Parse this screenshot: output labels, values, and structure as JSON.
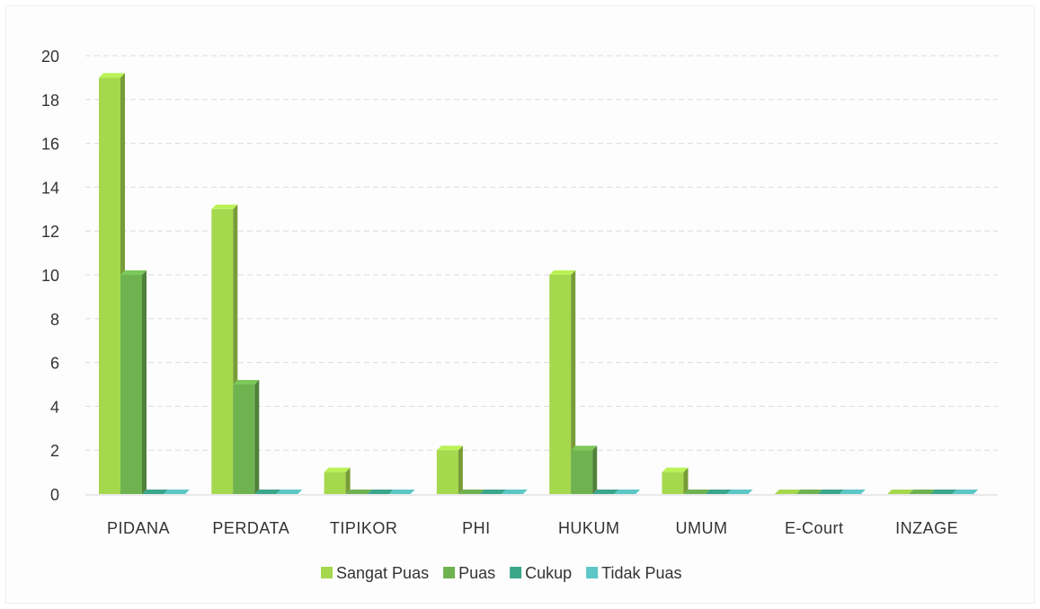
{
  "chart_data": {
    "type": "bar",
    "categories": [
      "PIDANA",
      "PERDATA",
      "TIPIKOR",
      "PHI",
      "HUKUM",
      "UMUM",
      "E-Court",
      "INZAGE"
    ],
    "series": [
      {
        "name": "Sangat Puas",
        "values": [
          19,
          13,
          1,
          2,
          10,
          1,
          0,
          0
        ],
        "color": "#a6d84e"
      },
      {
        "name": "Puas",
        "values": [
          10,
          5,
          0,
          0,
          2,
          0,
          0,
          0
        ],
        "color": "#6fb350"
      },
      {
        "name": "Cukup",
        "values": [
          0,
          0,
          0,
          0,
          0,
          0,
          0,
          0
        ],
        "color": "#3aa68a"
      },
      {
        "name": "Tidak Puas",
        "values": [
          0,
          0,
          0,
          0,
          0,
          0,
          0,
          0
        ],
        "color": "#5cc7c7"
      }
    ],
    "y_ticks": [
      "0",
      "2",
      "4",
      "6",
      "8",
      "10",
      "12",
      "14",
      "16",
      "18",
      "20"
    ],
    "ylim": [
      0,
      20
    ],
    "grid": true,
    "legend_position": "bottom",
    "title": "",
    "xlabel": "",
    "ylabel": ""
  }
}
